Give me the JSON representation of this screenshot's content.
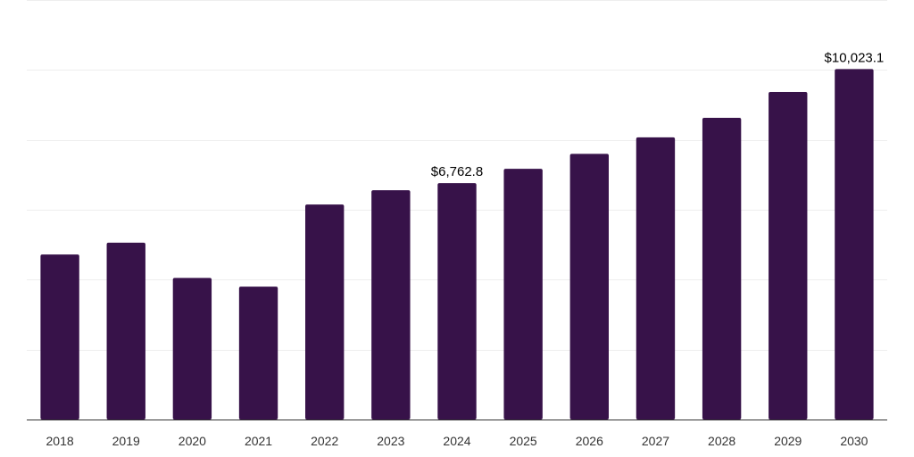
{
  "chart_data": {
    "type": "bar",
    "categories": [
      "2018",
      "2019",
      "2020",
      "2021",
      "2022",
      "2023",
      "2024",
      "2025",
      "2026",
      "2027",
      "2028",
      "2029",
      "2030"
    ],
    "series": [
      {
        "values": [
          4720,
          5060,
          4050,
          3800,
          6150,
          6560,
          6762.8,
          7170,
          7600,
          8070,
          8630,
          9370,
          10023.1
        ]
      }
    ],
    "data_labels": [
      {
        "index": 6,
        "text": "$6,762.8"
      },
      {
        "index": 12,
        "text": "$10,023.1"
      }
    ],
    "title": "",
    "xlabel": "",
    "ylabel": "",
    "ylim": [
      0,
      12000
    ],
    "gridline_step": 2000,
    "grid": true,
    "y_axis_labels_visible": false,
    "legend": "none",
    "colors": {
      "bar": "#371249",
      "grid": "#eeeeee",
      "axis": "#333333"
    }
  }
}
